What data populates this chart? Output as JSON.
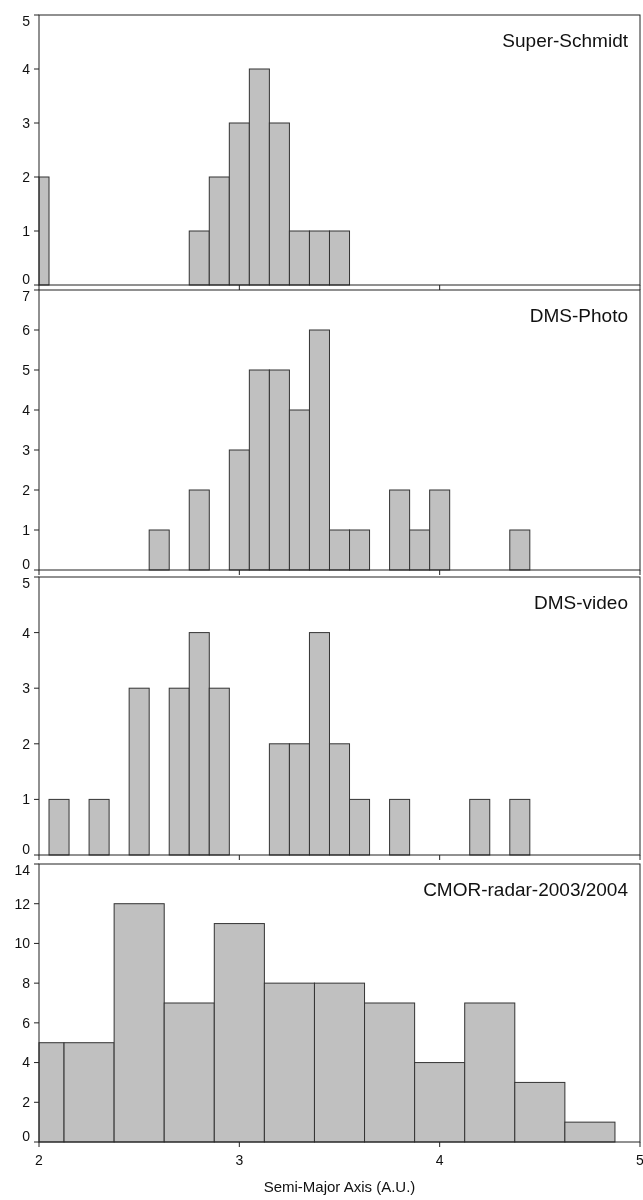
{
  "chart_data": [
    {
      "type": "histogram",
      "title": "Super-Schmidt",
      "bins": [
        2,
        2.05,
        2.75,
        2.85,
        2.95,
        3.05,
        3.15,
        3.25,
        3.35,
        3.45,
        3.55
      ],
      "values": [
        2,
        0,
        1,
        2,
        3,
        4,
        3,
        1,
        1,
        1
      ],
      "color": "#c0c0c0",
      "xlim": [
        2,
        5
      ],
      "xticks": [
        2,
        3,
        4,
        5
      ],
      "ylim": [
        0,
        5
      ],
      "yticks": [
        0,
        1,
        2,
        3,
        4,
        5
      ],
      "tick_labels": "y",
      "grid": false
    },
    {
      "type": "histogram",
      "title": "DMS-Photo",
      "bins": [
        2.55,
        2.65,
        2.75,
        2.85,
        2.95,
        3.05,
        3.15,
        3.25,
        3.35,
        3.45,
        3.55,
        3.65,
        3.75,
        3.85,
        3.95,
        4.05,
        4.15,
        4.25,
        4.35,
        4.45
      ],
      "values": [
        1,
        0,
        2,
        0,
        3,
        5,
        5,
        4,
        6,
        1,
        1,
        0,
        2,
        1,
        2,
        0,
        0,
        0,
        1
      ],
      "color": "#c0c0c0",
      "xlim": [
        2,
        5
      ],
      "xticks": [
        2,
        3,
        4,
        5
      ],
      "ylim": [
        0,
        7
      ],
      "yticks": [
        0,
        1,
        2,
        3,
        4,
        5,
        6,
        7
      ],
      "tick_labels": "y",
      "grid": false
    },
    {
      "type": "histogram",
      "title": "DMS-video",
      "bins": [
        2.05,
        2.15,
        2.25,
        2.35,
        2.45,
        2.55,
        2.65,
        2.75,
        2.85,
        2.95,
        3.05,
        3.15,
        3.25,
        3.35,
        3.45,
        3.55,
        3.65,
        3.75,
        3.85,
        3.95,
        4.05,
        4.15,
        4.25,
        4.35,
        4.45
      ],
      "values": [
        1,
        0,
        1,
        0,
        3,
        0,
        3,
        4,
        3,
        0,
        0,
        2,
        2,
        4,
        2,
        1,
        0,
        1,
        0,
        0,
        0,
        1,
        0,
        1
      ],
      "color": "#c0c0c0",
      "xlim": [
        2,
        5
      ],
      "xticks": [
        2,
        3,
        4,
        5
      ],
      "ylim": [
        0,
        5
      ],
      "yticks": [
        0,
        1,
        2,
        3,
        4,
        5
      ],
      "tick_labels": "y",
      "grid": false
    },
    {
      "type": "histogram",
      "title": "CMOR-radar-2003/2004",
      "xlabel": "Semi-Major Axis (A.U.)",
      "bins": [
        2,
        2.125,
        2.375,
        2.625,
        2.875,
        3.125,
        3.375,
        3.625,
        3.875,
        4.125,
        4.375,
        4.625,
        4.875
      ],
      "values": [
        5,
        5,
        12,
        7,
        11,
        8,
        8,
        7,
        4,
        7,
        3,
        1
      ],
      "color": "#c0c0c0",
      "xlim": [
        2,
        5
      ],
      "xticks": [
        2,
        3,
        4,
        5
      ],
      "ylim": [
        0,
        14
      ],
      "yticks": [
        0,
        2,
        4,
        6,
        8,
        10,
        12,
        14
      ],
      "grid": false
    }
  ]
}
